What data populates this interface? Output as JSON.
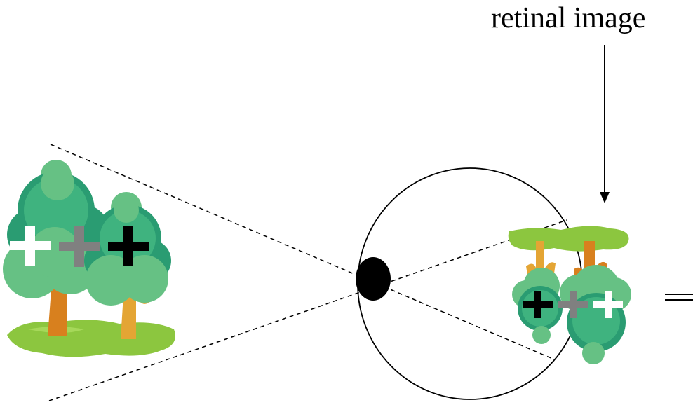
{
  "caption": {
    "text": "retinal image"
  },
  "colors": {
    "line": "#000000",
    "ground": "#8cc63f",
    "foliage_dark": "#2a9c72",
    "foliage_mid": "#3fb37f",
    "foliage_light": "#66c184",
    "trunk_orange": "#d8801e",
    "trunk_yellow": "#e4a534",
    "cross_white": "#ffffff",
    "cross_gray": "#808080",
    "cross_black": "#000000",
    "pupil": "#000000"
  },
  "icons": {
    "object": "trees-icon",
    "eye": "eyeball-icon",
    "pupil": "pupil-icon",
    "retinal_image": "inverted-trees-icon",
    "arrow": "down-arrow-icon",
    "equals": "equals-sign-icon"
  }
}
